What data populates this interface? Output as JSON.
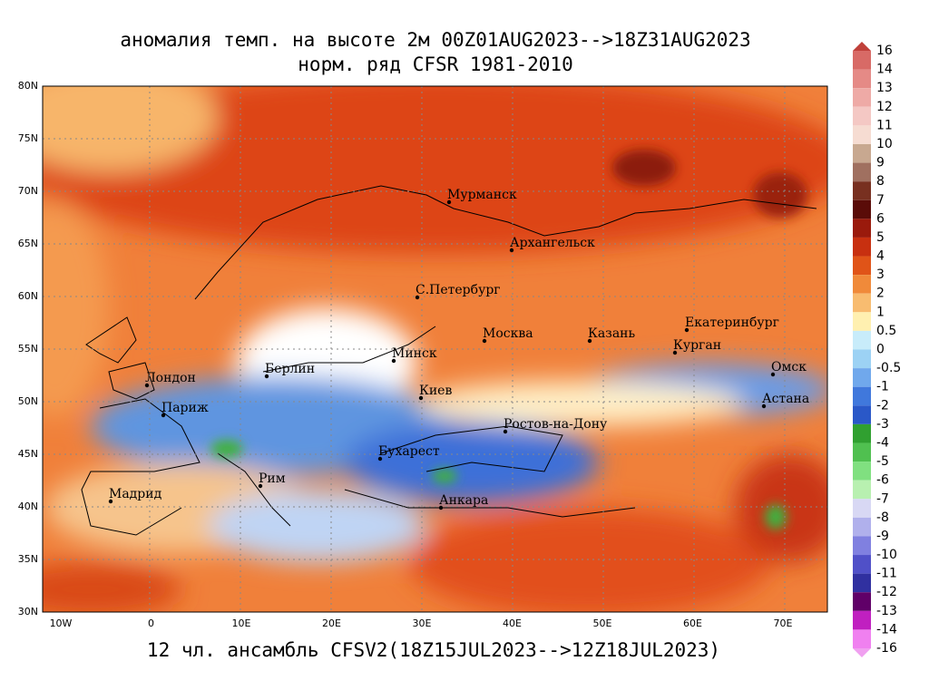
{
  "header": {
    "title": "аномалия темп. на высоте 2м 00Z01AUG2023-->18Z31AUG2023",
    "subtitle": "норм. ряд CFSR 1981-2010"
  },
  "footer": "12 чл. ансамбль CFSV2(18Z15JUL2023-->12Z18JUL2023)",
  "map": {
    "lat_labels": [
      "80N",
      "75N",
      "70N",
      "65N",
      "60N",
      "55N",
      "50N",
      "45N",
      "40N",
      "35N",
      "30N"
    ],
    "lon_labels": [
      "10W",
      "0",
      "10E",
      "20E",
      "30E",
      "40E",
      "50E",
      "60E",
      "70E"
    ],
    "cities": [
      "Мурманск",
      "Архангельск",
      "С.Петербург",
      "Москва",
      "Казань",
      "Екатеринбург",
      "Курган",
      "Омск",
      "Астана",
      "Минск",
      "Берлин",
      "Лондон",
      "Париж",
      "Киев",
      "Ростов-на-Дону",
      "Бухарест",
      "Рим",
      "Мадрид",
      "Анкара"
    ]
  },
  "colorbar": {
    "labels": [
      "16",
      "14",
      "13",
      "12",
      "11",
      "10",
      "9",
      "8",
      "7",
      "6",
      "5",
      "4",
      "3",
      "2",
      "1",
      "0.5",
      "0",
      "-0.5",
      "-1",
      "-2",
      "-3",
      "-4",
      "-5",
      "-6",
      "-7",
      "-8",
      "-9",
      "-10",
      "-11",
      "-12",
      "-13",
      "-14",
      "-16"
    ]
  }
}
